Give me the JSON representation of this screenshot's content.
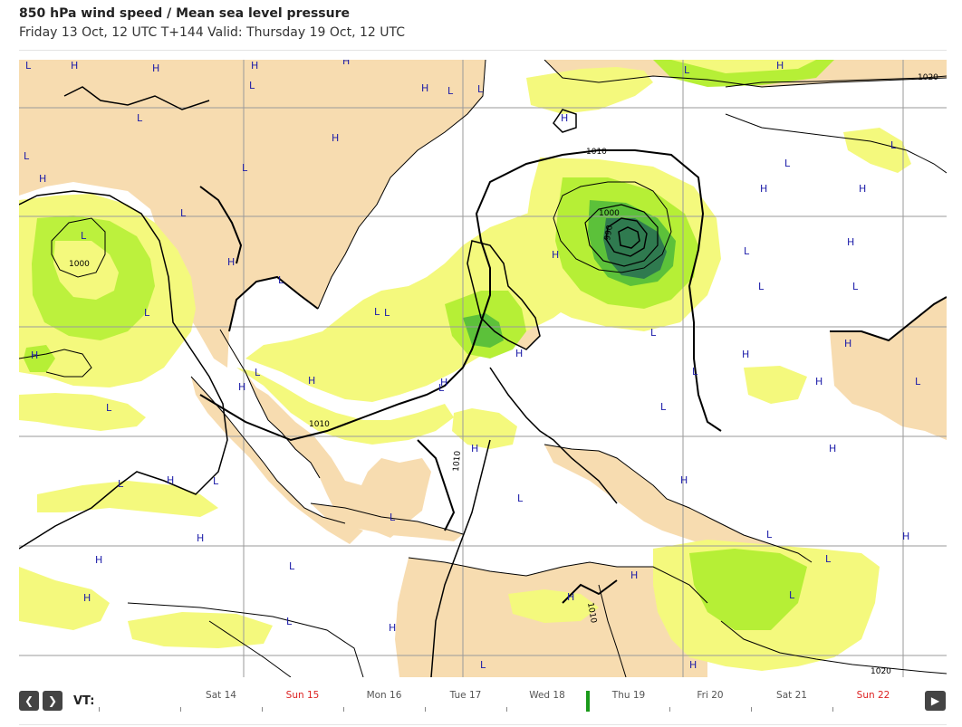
{
  "header": {
    "title": "850 hPa wind speed / Mean sea level pressure",
    "subtitle": "Friday 13 Oct, 12 UTC T+144 Valid: Thursday 19 Oct, 12 UTC"
  },
  "map": {
    "isobar_labels": [
      "1020",
      "1010",
      "1000",
      "990",
      "1010",
      "1000",
      "1010",
      "1010",
      "1020"
    ],
    "pressure_centers": [
      "L",
      "H",
      "H",
      "H",
      "H",
      "H",
      "L",
      "L",
      "L",
      "L",
      "L",
      "H",
      "H",
      "L",
      "L",
      "L",
      "H",
      "L",
      "L",
      "L",
      "H",
      "L",
      "H",
      "L",
      "H",
      "L",
      "H",
      "L",
      "H",
      "H",
      "L",
      "L",
      "L",
      "H",
      "L",
      "H",
      "H",
      "H",
      "L",
      "H",
      "L",
      "L",
      "H",
      "H",
      "L",
      "H",
      "L",
      "L",
      "L",
      "H",
      "L",
      "H",
      "H",
      "L",
      "L",
      "H",
      "H",
      "L",
      "H",
      "H",
      "H",
      "L",
      "L",
      "H",
      "L",
      "H",
      "L",
      "H",
      "L",
      "H"
    ],
    "colors": {
      "land": "#f7dcb0",
      "wind_light": "#f4f97d",
      "wind_medium": "#b6ef36",
      "wind_strong": "#5cc13a",
      "wind_very_strong": "#2f7a4f",
      "coast": "#000000",
      "grid": "#9a9a9a",
      "center_label": "#1a1aa8"
    }
  },
  "timeline": {
    "vt_label": "VT:",
    "prev_icon": "chevron-left-icon",
    "next_icon": "chevron-right-icon",
    "play_icon": "play-icon",
    "days": [
      {
        "label": "Sat 14",
        "weekend": false
      },
      {
        "label": "Sun 15",
        "weekend": true
      },
      {
        "label": "Mon 16",
        "weekend": false
      },
      {
        "label": "Tue 17",
        "weekend": false
      },
      {
        "label": "Wed 18",
        "weekend": false
      },
      {
        "label": "Thu 19",
        "weekend": false
      },
      {
        "label": "Fri 20",
        "weekend": false
      },
      {
        "label": "Sat 21",
        "weekend": false
      },
      {
        "label": "Sun 22",
        "weekend": true
      }
    ],
    "current_day": "Thu 19"
  }
}
